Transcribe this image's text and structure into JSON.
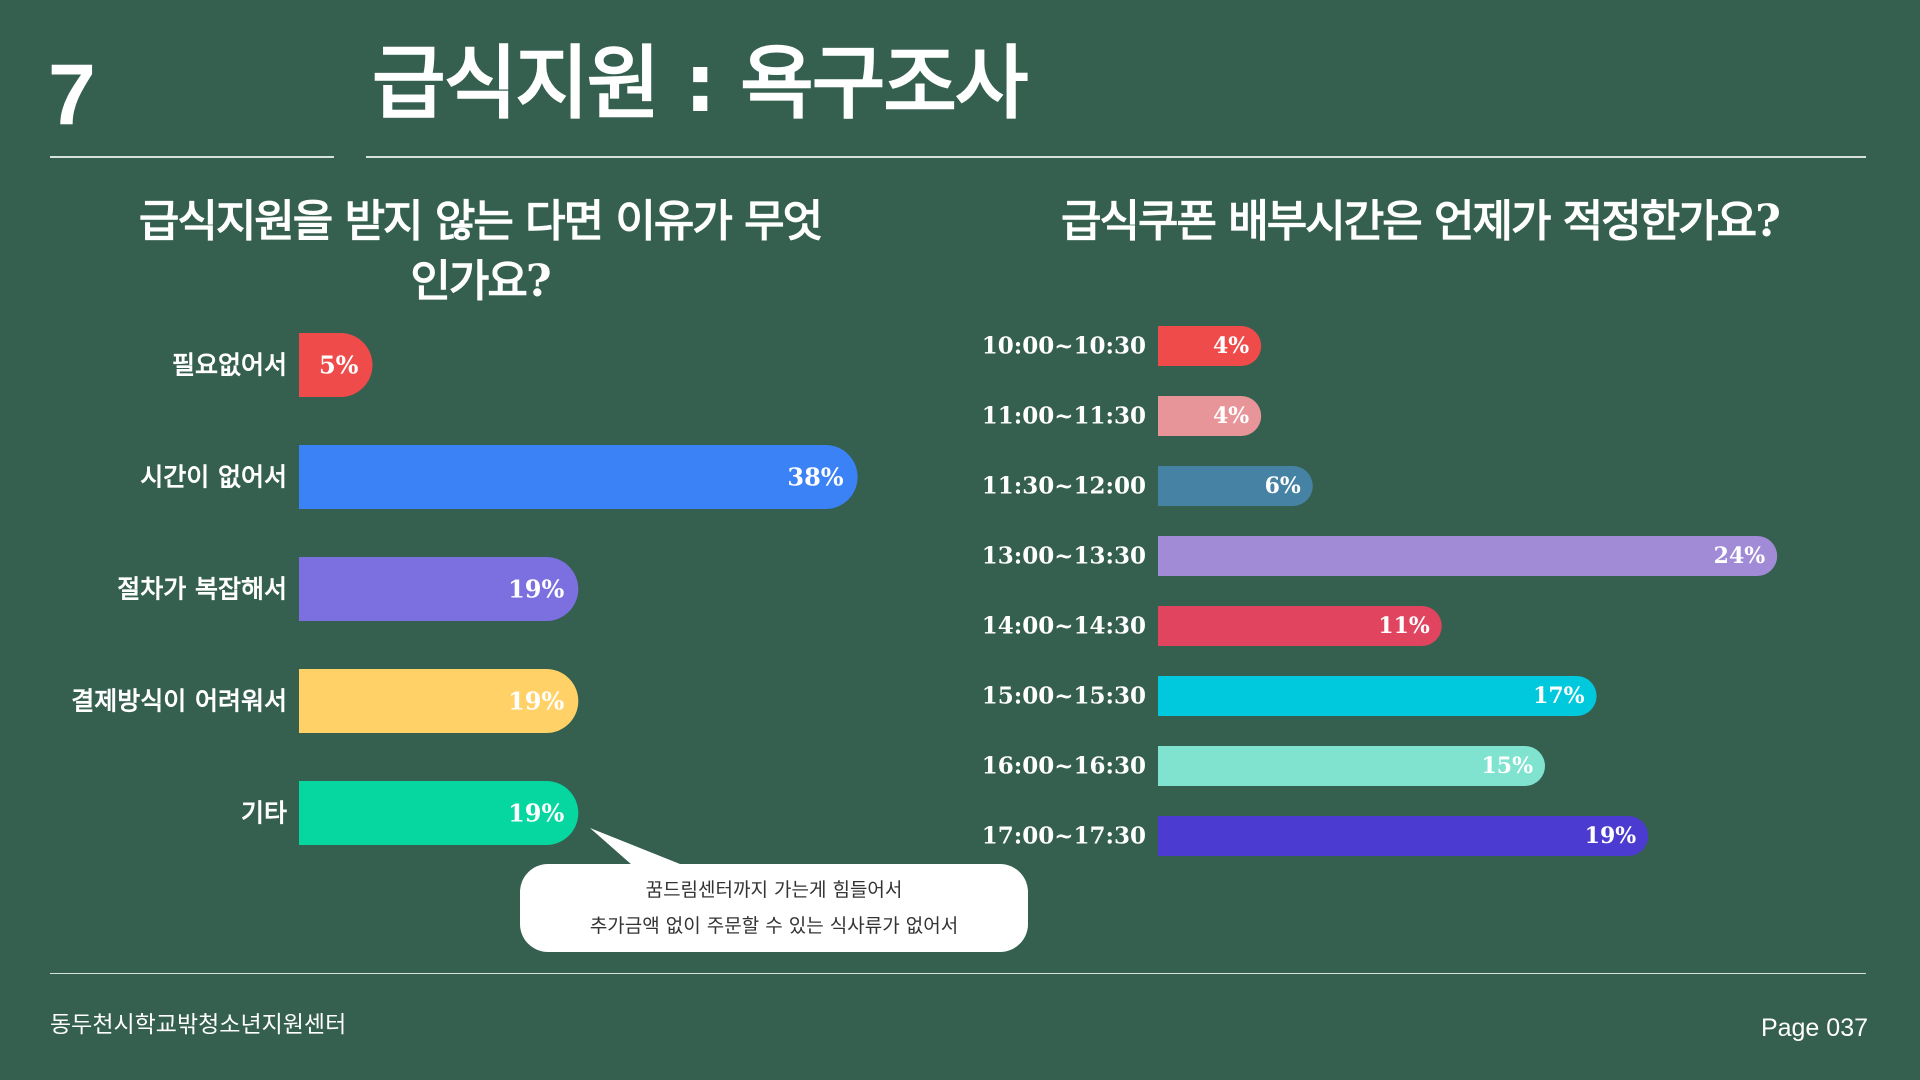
{
  "slide": {
    "number": "7",
    "title": "급식지원 : 욕구조사"
  },
  "chart_data": [
    {
      "type": "bar",
      "orientation": "horizontal",
      "title": "급식지원을 받지 않는 다면 이유가 무엇인가요?",
      "categories": [
        "필요없어서",
        "시간이 없어서",
        "절차가 복잡해서",
        "결제방식이 어려워서",
        "기타"
      ],
      "values": [
        5,
        38,
        19,
        19,
        19
      ],
      "value_labels": [
        "5%",
        "38%",
        "19%",
        "19%",
        "19%"
      ],
      "colors": [
        "#ef4b4b",
        "#3b82f6",
        "#7c6fe0",
        "#ffd166",
        "#06d6a0"
      ],
      "annotation": {
        "target": "기타",
        "lines": [
          "꿈드림센터까지 가는게 힘들어서",
          "추가금액 없이 주문할 수 있는 식사류가 없어서"
        ]
      }
    },
    {
      "type": "bar",
      "orientation": "horizontal",
      "title": "급식쿠폰 배부시간은 언제가 적정한가요?",
      "categories": [
        "10:00~10:30",
        "11:00~11:30",
        "11:30~12:00",
        "13:00~13:30",
        "14:00~14:30",
        "15:00~15:30",
        "16:00~16:30",
        "17:00~17:30"
      ],
      "values": [
        4,
        4,
        6,
        24,
        11,
        17,
        15,
        19
      ],
      "value_labels": [
        "4%",
        "4%",
        "6%",
        "24%",
        "11%",
        "17%",
        "15%",
        "19%"
      ],
      "colors": [
        "#ef4b4b",
        "#e8959a",
        "#4682a4",
        "#a18bd6",
        "#e0445f",
        "#00c9dd",
        "#7fe3d0",
        "#4b3bd0"
      ]
    }
  ],
  "footer": {
    "organization": "동두천시학교밖청소년지원센터",
    "page": "Page 037"
  }
}
